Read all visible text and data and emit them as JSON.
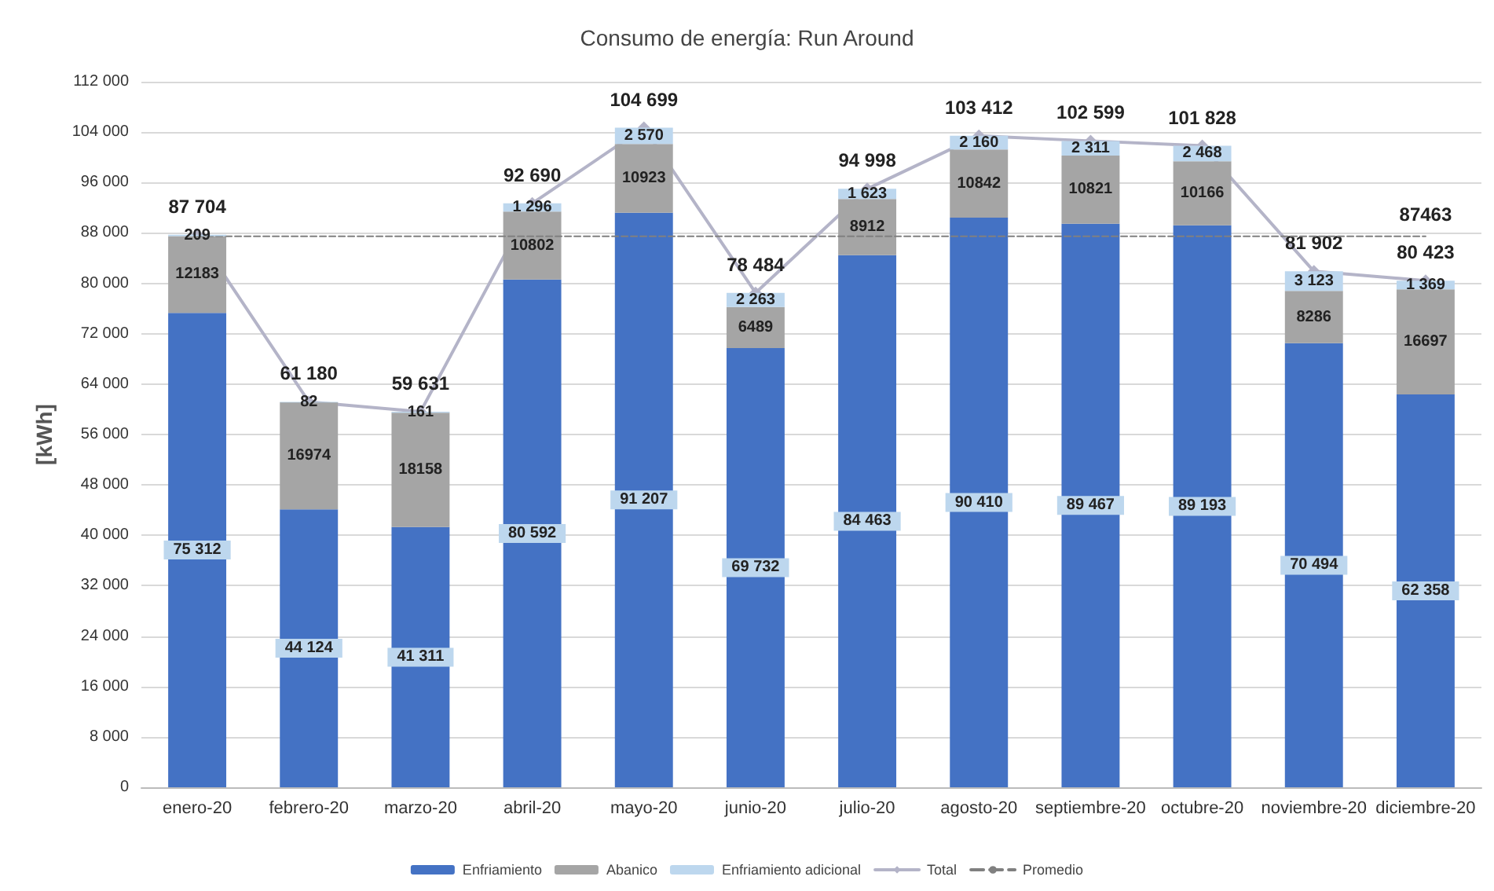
{
  "chart_data": {
    "type": "bar",
    "title": "Consumo de energía: Run Around",
    "ylabel": "[kWh]",
    "stacked": true,
    "grid": "y",
    "legend": "bottom",
    "categories": [
      "enero-20",
      "febrero-20",
      "marzo-20",
      "abril-20",
      "mayo-20",
      "junio-20",
      "julio-20",
      "agosto-20",
      "septiembre-20",
      "octubre-20",
      "noviembre-20",
      "diciembre-20"
    ],
    "ylim": [
      0,
      112000
    ],
    "yticks": [
      {
        "value": 0,
        "label": "0"
      },
      {
        "value": 8000,
        "label": "8 000"
      },
      {
        "value": 16000,
        "label": "16 000"
      },
      {
        "value": 24000,
        "label": "24 000"
      },
      {
        "value": 32000,
        "label": "32 000"
      },
      {
        "value": 40000,
        "label": "40 000"
      },
      {
        "value": 48000,
        "label": "48 000"
      },
      {
        "value": 56000,
        "label": "56 000"
      },
      {
        "value": 64000,
        "label": "64 000"
      },
      {
        "value": 72000,
        "label": "72 000"
      },
      {
        "value": 80000,
        "label": "80 000"
      },
      {
        "value": 88000,
        "label": "88 000"
      },
      {
        "value": 96000,
        "label": "96 000"
      },
      {
        "value": 104000,
        "label": "104 000"
      },
      {
        "value": 112000,
        "label": "112 000"
      }
    ],
    "series": [
      {
        "name": "Enfriamiento",
        "color": "#4472c4",
        "values": [
          75312,
          44124,
          41311,
          80592,
          91207,
          69732,
          84463,
          90410,
          89467,
          89193,
          70494,
          62358
        ],
        "value_labels": [
          "75 312",
          "44 124",
          "41 311",
          "80 592",
          "91 207",
          "69 732",
          "84 463",
          "90 410",
          "89 467",
          "89 193",
          "70 494",
          "62 358"
        ]
      },
      {
        "name": "Abanico",
        "color": "#a5a5a5",
        "values": [
          12183,
          16974,
          18158,
          10802,
          10923,
          6489,
          8912,
          10842,
          10821,
          10166,
          8286,
          16697
        ],
        "value_labels": [
          "12183",
          "16974",
          "18158",
          "10802",
          "10923",
          "6489",
          "8912",
          "10842",
          "10821",
          "10166",
          "8286",
          "16697"
        ]
      },
      {
        "name": "Enfriamiento adicional",
        "color": "#bdd7ee",
        "values": [
          209,
          82,
          161,
          1296,
          2570,
          2263,
          1623,
          2160,
          2311,
          2468,
          3123,
          1369
        ],
        "value_labels": [
          "209",
          "82",
          "161",
          "1 296",
          "2 570",
          "2 263",
          "1 623",
          "2 160",
          "2 311",
          "2 468",
          "3 123",
          "1 369"
        ]
      },
      {
        "name": "Total",
        "type": "line",
        "color": "#b4b4c8",
        "marker": "diamond",
        "line_style": "solid",
        "values": [
          87704,
          61180,
          59631,
          92690,
          104699,
          78484,
          94998,
          103412,
          102599,
          101828,
          81902,
          80423
        ],
        "value_labels": [
          "87 704",
          "61 180",
          "59 631",
          "92 690",
          "104 699",
          "78 484",
          "94 998",
          "103 412",
          "102 599",
          "101 828",
          "81 902",
          "80 423"
        ]
      },
      {
        "name": "Promedio",
        "type": "line",
        "color": "#808080",
        "marker": "none",
        "line_style": "dashed",
        "values": [
          87463,
          87463,
          87463,
          87463,
          87463,
          87463,
          87463,
          87463,
          87463,
          87463,
          87463,
          87463
        ],
        "value_labels": [
          null,
          null,
          null,
          null,
          null,
          null,
          null,
          null,
          null,
          null,
          null,
          "87463"
        ]
      }
    ]
  }
}
